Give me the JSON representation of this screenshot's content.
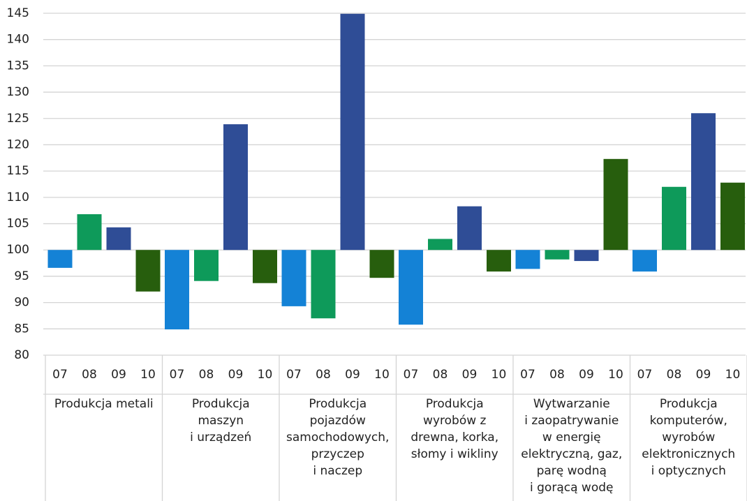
{
  "chart_data": {
    "type": "bar",
    "base": 100,
    "ylim": [
      80,
      145
    ],
    "yticks": [
      80,
      85,
      90,
      95,
      100,
      105,
      110,
      115,
      120,
      125,
      130,
      135,
      140,
      145
    ],
    "grid": true,
    "categories": [
      "Produkcja metali",
      "Produkcja\nmaszyn\ni urządzeń",
      "Produkcja\npojazdów\nsamochodowych,\nprzyczep\ni naczep",
      "Produkcja\nwyrobów z\ndrewna, korka,\nsłomy i wikliny",
      "Wytwarzanie\ni zaopatrywanie\nw energię\nelektryczną, gaz,\nparę wodną\ni gorącą wodę",
      "Produkcja\nkomputerów,\nwyrobów\nelektronicznych\ni optycznych"
    ],
    "series": [
      {
        "name": "07",
        "color": "#1482d6",
        "values": [
          96.6,
          84.9,
          89.3,
          85.8,
          96.4,
          95.9
        ]
      },
      {
        "name": "08",
        "color": "#0e9a5a",
        "values": [
          106.8,
          94.1,
          87.0,
          102.1,
          98.2,
          112.0
        ]
      },
      {
        "name": "09",
        "color": "#2f4d96",
        "values": [
          104.3,
          123.9,
          144.9,
          108.3,
          97.9,
          126.0
        ]
      },
      {
        "name": "10",
        "color": "#275e0d",
        "values": [
          92.1,
          93.7,
          94.7,
          95.9,
          117.3,
          112.8
        ]
      }
    ]
  }
}
